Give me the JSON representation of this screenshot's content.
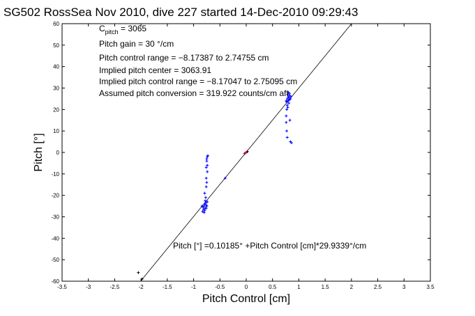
{
  "chart_data": {
    "type": "scatter",
    "title": "SG502 RossSea Nov 2010, dive 227 started 14-Dec-2010 09:29:43",
    "xlabel": "Pitch Control [cm]",
    "ylabel": "Pitch [°]",
    "xlim": [
      -3.5,
      3.5
    ],
    "ylim": [
      -60,
      60
    ],
    "xticks": [
      "-3.5",
      "-3",
      "-2.5",
      "-2",
      "-1.5",
      "-1",
      "-0.5",
      "0",
      "0.5",
      "1",
      "1.5",
      "2",
      "2.5",
      "3",
      "3.5"
    ],
    "yticks": [
      "60",
      "50",
      "40",
      "30",
      "20",
      "10",
      "0",
      "-10",
      "-20",
      "-30",
      "-40",
      "-50",
      "-60"
    ],
    "grid": false,
    "annotations": {
      "c_pitch_main": "C",
      "c_pitch_sub": "pitch",
      "c_pitch_value": " = 3065",
      "pitch_gain": "Pitch gain = 30 °/cm",
      "control_range": "Pitch control range = −8.17387 to 2.74755 cm",
      "implied_center": "Implied pitch center = 3063.91",
      "implied_range": "Implied pitch control range = −8.17047 to 2.75095 cm",
      "assumed_conversion": "Assumed pitch conversion = 319.922 counts/cm aft"
    },
    "fit_label": "Pitch [°] =0.10185° +Pitch Control [cm]*29.9339°/cm",
    "fit_line": {
      "intercept": 0.10185,
      "slope": 29.9339,
      "x_range": [
        -2.0,
        2.0
      ]
    },
    "series": [
      {
        "color": "#0000ff",
        "points": [
          [
            -0.78,
            -26
          ],
          [
            -0.8,
            -25
          ],
          [
            -0.76,
            -24.5
          ],
          [
            -0.79,
            -27
          ],
          [
            -0.82,
            -25.5
          ],
          [
            -0.77,
            -23.5
          ],
          [
            -0.81,
            -26.5
          ],
          [
            -0.75,
            -25
          ],
          [
            -0.83,
            -27.5
          ],
          [
            -0.79,
            -24
          ],
          [
            -0.78,
            -22.5
          ],
          [
            -0.8,
            -28
          ],
          [
            -0.76,
            -26
          ],
          [
            -0.74,
            -23
          ],
          [
            -0.84,
            -25
          ],
          [
            -0.77,
            -21
          ],
          [
            -0.79,
            -19
          ],
          [
            -0.76,
            -16
          ],
          [
            -0.75,
            -14
          ],
          [
            -0.76,
            -12
          ],
          [
            -0.74,
            -9
          ],
          [
            -0.74,
            -6
          ],
          [
            -0.75,
            -4
          ],
          [
            -0.74,
            -2
          ],
          [
            -0.73,
            -1.5
          ],
          [
            -0.76,
            -7
          ],
          [
            -0.75,
            -3
          ],
          [
            0.78,
            25
          ],
          [
            0.8,
            26
          ],
          [
            0.82,
            24.5
          ],
          [
            0.79,
            27
          ],
          [
            0.81,
            25.5
          ],
          [
            0.77,
            23.5
          ],
          [
            0.83,
            26.5
          ],
          [
            0.8,
            28
          ],
          [
            0.78,
            22
          ],
          [
            0.84,
            25
          ],
          [
            0.76,
            24
          ],
          [
            0.79,
            21
          ],
          [
            0.82,
            27.5
          ],
          [
            0.81,
            23
          ],
          [
            0.8,
            24.2
          ],
          [
            0.85,
            26
          ],
          [
            0.77,
            20
          ],
          [
            0.76,
            17
          ],
          [
            0.76,
            14
          ],
          [
            0.77,
            10
          ],
          [
            0.78,
            7
          ],
          [
            0.84,
            5
          ],
          [
            0.86,
            4.5
          ],
          [
            0.83,
            15
          ],
          [
            -0.03,
            -0.5
          ],
          [
            -0.4,
            -12
          ]
        ]
      },
      {
        "color": "#ff0000",
        "points": [
          [
            0.0,
            0.0
          ],
          [
            0.02,
            0.5
          ],
          [
            -0.02,
            -0.3
          ]
        ]
      },
      {
        "color": "#000000",
        "points": [
          [
            -2.05,
            -56
          ],
          [
            -1.98,
            -59
          ],
          [
            0.02,
            0.3
          ]
        ]
      }
    ]
  }
}
